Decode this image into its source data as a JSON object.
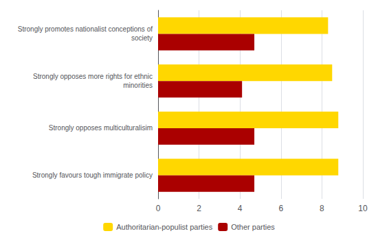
{
  "chart_data": {
    "type": "bar",
    "orientation": "horizontal",
    "categories": [
      "Strongly promotes nationalist conceptions of\nsociety",
      "Strongly opposes more rights for ethnic\nminorities",
      "Strongly opposes multiculturalisim",
      "Strongly favours tough immigrate policy"
    ],
    "series": [
      {
        "name": "Authoritarian-populist parties",
        "color": "#FFD700",
        "values": [
          8.3,
          8.5,
          8.8,
          8.8
        ]
      },
      {
        "name": "Other parties",
        "color": "#AA0000",
        "values": [
          4.7,
          4.1,
          4.7,
          4.7
        ]
      }
    ],
    "xlim": [
      0,
      10
    ],
    "xticks": [
      0,
      2,
      4,
      6,
      8,
      10
    ],
    "grid": true,
    "legend": "bottom"
  }
}
